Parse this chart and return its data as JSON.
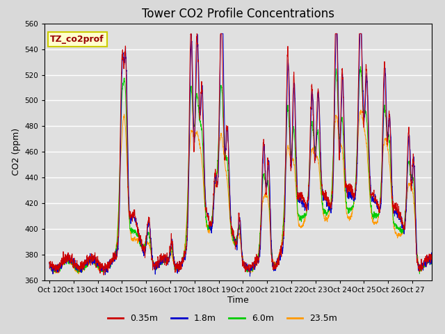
{
  "title": "Tower CO2 Profile Concentrations",
  "xlabel": "Time",
  "ylabel": "CO2 (ppm)",
  "ylim": [
    360,
    560
  ],
  "yticks": [
    360,
    380,
    400,
    420,
    440,
    460,
    480,
    500,
    520,
    540,
    560
  ],
  "xtick_labels": [
    "Oct 12",
    "Oct 13",
    "Oct 14",
    "Oct 15",
    "Oct 16",
    "Oct 17",
    "Oct 18",
    "Oct 19",
    "Oct 20",
    "Oct 21",
    "Oct 22",
    "Oct 23",
    "Oct 24",
    "Oct 25",
    "Oct 26",
    "Oct 27"
  ],
  "label_box_text": "TZ_co2prof",
  "label_box_color": "#ffffcc",
  "label_box_edgecolor": "#cccc00",
  "label_text_color": "#990000",
  "legend_labels": [
    "0.35m",
    "1.8m",
    "6.0m",
    "23.5m"
  ],
  "line_colors": [
    "#cc0000",
    "#0000cc",
    "#00cc00",
    "#ff9900"
  ],
  "background_color": "#d9d9d9",
  "plot_bg_color": "#e0e0e0",
  "grid_color": "#ffffff",
  "title_fontsize": 12,
  "n_points": 3840,
  "seed": 42,
  "figsize": [
    6.4,
    4.8
  ],
  "dpi": 100
}
